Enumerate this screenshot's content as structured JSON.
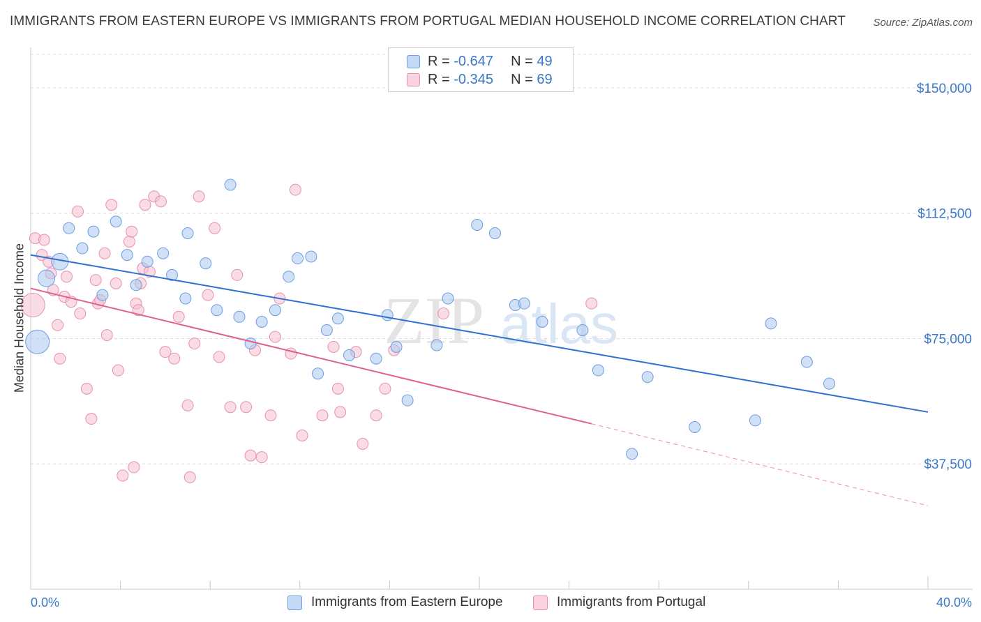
{
  "title": "IMMIGRANTS FROM EASTERN EUROPE VS IMMIGRANTS FROM PORTUGAL MEDIAN HOUSEHOLD INCOME CORRELATION CHART",
  "source": "Source: ZipAtlas.com",
  "watermark": {
    "zip": "ZIP",
    "atlas": "atlas"
  },
  "colors": {
    "blue_fill": "#aac8f0",
    "blue_stroke": "#6d9de0",
    "blue_line": "#2e6fd0",
    "pink_fill": "#f6bfd0",
    "pink_stroke": "#e890ad",
    "pink_line": "#e0608e",
    "axis_text": "#3a78c8",
    "grid": "#dcdcdc"
  },
  "stats": {
    "blue": {
      "r_label": "R =",
      "r_value": "-0.647",
      "n_label": "N =",
      "n_value": "49"
    },
    "pink": {
      "r_label": "R =",
      "r_value": "-0.345",
      "n_label": "N =",
      "n_value": "69"
    }
  },
  "chart_data": {
    "type": "scatter",
    "title": "IMMIGRANTS FROM EASTERN EUROPE VS IMMIGRANTS FROM PORTUGAL MEDIAN HOUSEHOLD INCOME CORRELATION CHART",
    "xlabel": "",
    "ylabel": "Median Household Income",
    "xlim": [
      0,
      40
    ],
    "ylim": [
      0,
      160000
    ],
    "x_tick_labels": [
      "0.0%",
      "40.0%"
    ],
    "y_ticks": [
      37500,
      75000,
      112500,
      150000
    ],
    "y_tick_labels": [
      "$37,500",
      "$75,000",
      "$112,500",
      "$150,000"
    ],
    "legend_position": "bottom",
    "series": [
      {
        "name": "Immigrants from Eastern Europe",
        "color": "blue",
        "trend": {
          "x": [
            0.0,
            40.0
          ],
          "y": [
            100000,
            53000
          ]
        },
        "points": [
          [
            0.3,
            74000,
            "large"
          ],
          [
            0.7,
            93000,
            "medium"
          ],
          [
            1.3,
            98000,
            "medium"
          ],
          [
            1.7,
            108000
          ],
          [
            2.3,
            102000
          ],
          [
            2.8,
            107000
          ],
          [
            3.2,
            88000
          ],
          [
            3.8,
            110000
          ],
          [
            4.3,
            100000
          ],
          [
            4.7,
            91000
          ],
          [
            5.2,
            98000
          ],
          [
            5.9,
            100500
          ],
          [
            6.3,
            94000
          ],
          [
            6.9,
            87000
          ],
          [
            7.0,
            106500
          ],
          [
            7.8,
            97500
          ],
          [
            8.3,
            83500
          ],
          [
            8.9,
            121000
          ],
          [
            9.3,
            81500
          ],
          [
            9.8,
            73500
          ],
          [
            10.3,
            80000
          ],
          [
            10.9,
            83500
          ],
          [
            11.5,
            93500
          ],
          [
            11.9,
            99000
          ],
          [
            12.5,
            99500
          ],
          [
            12.8,
            64500
          ],
          [
            13.2,
            77500
          ],
          [
            13.7,
            81000
          ],
          [
            14.2,
            70000
          ],
          [
            15.4,
            69000
          ],
          [
            15.9,
            82000
          ],
          [
            16.3,
            72500
          ],
          [
            16.8,
            56500
          ],
          [
            18.1,
            73000
          ],
          [
            18.6,
            87000
          ],
          [
            19.9,
            109000
          ],
          [
            20.7,
            106500
          ],
          [
            21.6,
            85000
          ],
          [
            22.0,
            85500
          ],
          [
            22.8,
            80000
          ],
          [
            24.6,
            77500
          ],
          [
            25.3,
            65500
          ],
          [
            26.8,
            40500
          ],
          [
            27.5,
            63500
          ],
          [
            29.6,
            48500
          ],
          [
            32.3,
            50500
          ],
          [
            33.0,
            79500
          ],
          [
            34.6,
            68000
          ],
          [
            35.6,
            61500
          ]
        ]
      },
      {
        "name": "Immigrants from Portugal",
        "color": "pink",
        "trend": {
          "x": [
            0.0,
            25.0
          ],
          "y": [
            90000,
            49500
          ]
        },
        "trend_dashed": {
          "x": [
            25.0,
            40.0
          ],
          "y": [
            49500,
            25000
          ]
        },
        "points": [
          [
            0.1,
            85000,
            "large"
          ],
          [
            0.2,
            105000
          ],
          [
            0.5,
            100000
          ],
          [
            0.6,
            104500
          ],
          [
            0.8,
            98000
          ],
          [
            0.9,
            94500
          ],
          [
            1.0,
            89500
          ],
          [
            1.2,
            79000
          ],
          [
            1.3,
            69000
          ],
          [
            1.5,
            87500
          ],
          [
            1.6,
            93500
          ],
          [
            1.8,
            86000
          ],
          [
            2.1,
            113000
          ],
          [
            2.2,
            82500
          ],
          [
            2.5,
            60000
          ],
          [
            2.7,
            51000
          ],
          [
            2.9,
            92500
          ],
          [
            3.0,
            85500
          ],
          [
            3.1,
            86500
          ],
          [
            3.3,
            100500
          ],
          [
            3.4,
            76000
          ],
          [
            3.6,
            115000
          ],
          [
            3.8,
            91500
          ],
          [
            3.9,
            65500
          ],
          [
            4.1,
            34000
          ],
          [
            4.4,
            104000
          ],
          [
            4.5,
            107000
          ],
          [
            4.7,
            85500
          ],
          [
            4.8,
            83500
          ],
          [
            4.9,
            91500
          ],
          [
            5.0,
            96000
          ],
          [
            5.1,
            115000
          ],
          [
            5.3,
            95000
          ],
          [
            5.5,
            117500
          ],
          [
            5.8,
            116000
          ],
          [
            6.0,
            71000
          ],
          [
            6.4,
            69000
          ],
          [
            6.6,
            81500
          ],
          [
            7.0,
            55000
          ],
          [
            7.1,
            33500
          ],
          [
            7.3,
            73500
          ],
          [
            7.5,
            117500
          ],
          [
            7.9,
            88000
          ],
          [
            8.2,
            108000
          ],
          [
            8.4,
            69500
          ],
          [
            8.9,
            54500
          ],
          [
            9.2,
            94000
          ],
          [
            9.6,
            54500
          ],
          [
            10.0,
            71500
          ],
          [
            10.3,
            39500
          ],
          [
            10.7,
            52000
          ],
          [
            10.9,
            75500
          ],
          [
            11.1,
            87000
          ],
          [
            11.6,
            70500
          ],
          [
            11.8,
            119500
          ],
          [
            12.1,
            46000
          ],
          [
            13.0,
            52000
          ],
          [
            13.5,
            72500
          ],
          [
            13.7,
            60000
          ],
          [
            13.8,
            53000
          ],
          [
            14.5,
            71000
          ],
          [
            14.8,
            43500
          ],
          [
            15.4,
            52000
          ],
          [
            15.8,
            60000
          ],
          [
            16.2,
            71500
          ],
          [
            18.4,
            82500
          ],
          [
            25.0,
            85500
          ],
          [
            9.8,
            40000
          ],
          [
            4.6,
            36500
          ]
        ]
      }
    ]
  },
  "legend": {
    "items": [
      {
        "label": "Immigrants from Eastern Europe"
      },
      {
        "label": "Immigrants from Portugal"
      }
    ]
  }
}
